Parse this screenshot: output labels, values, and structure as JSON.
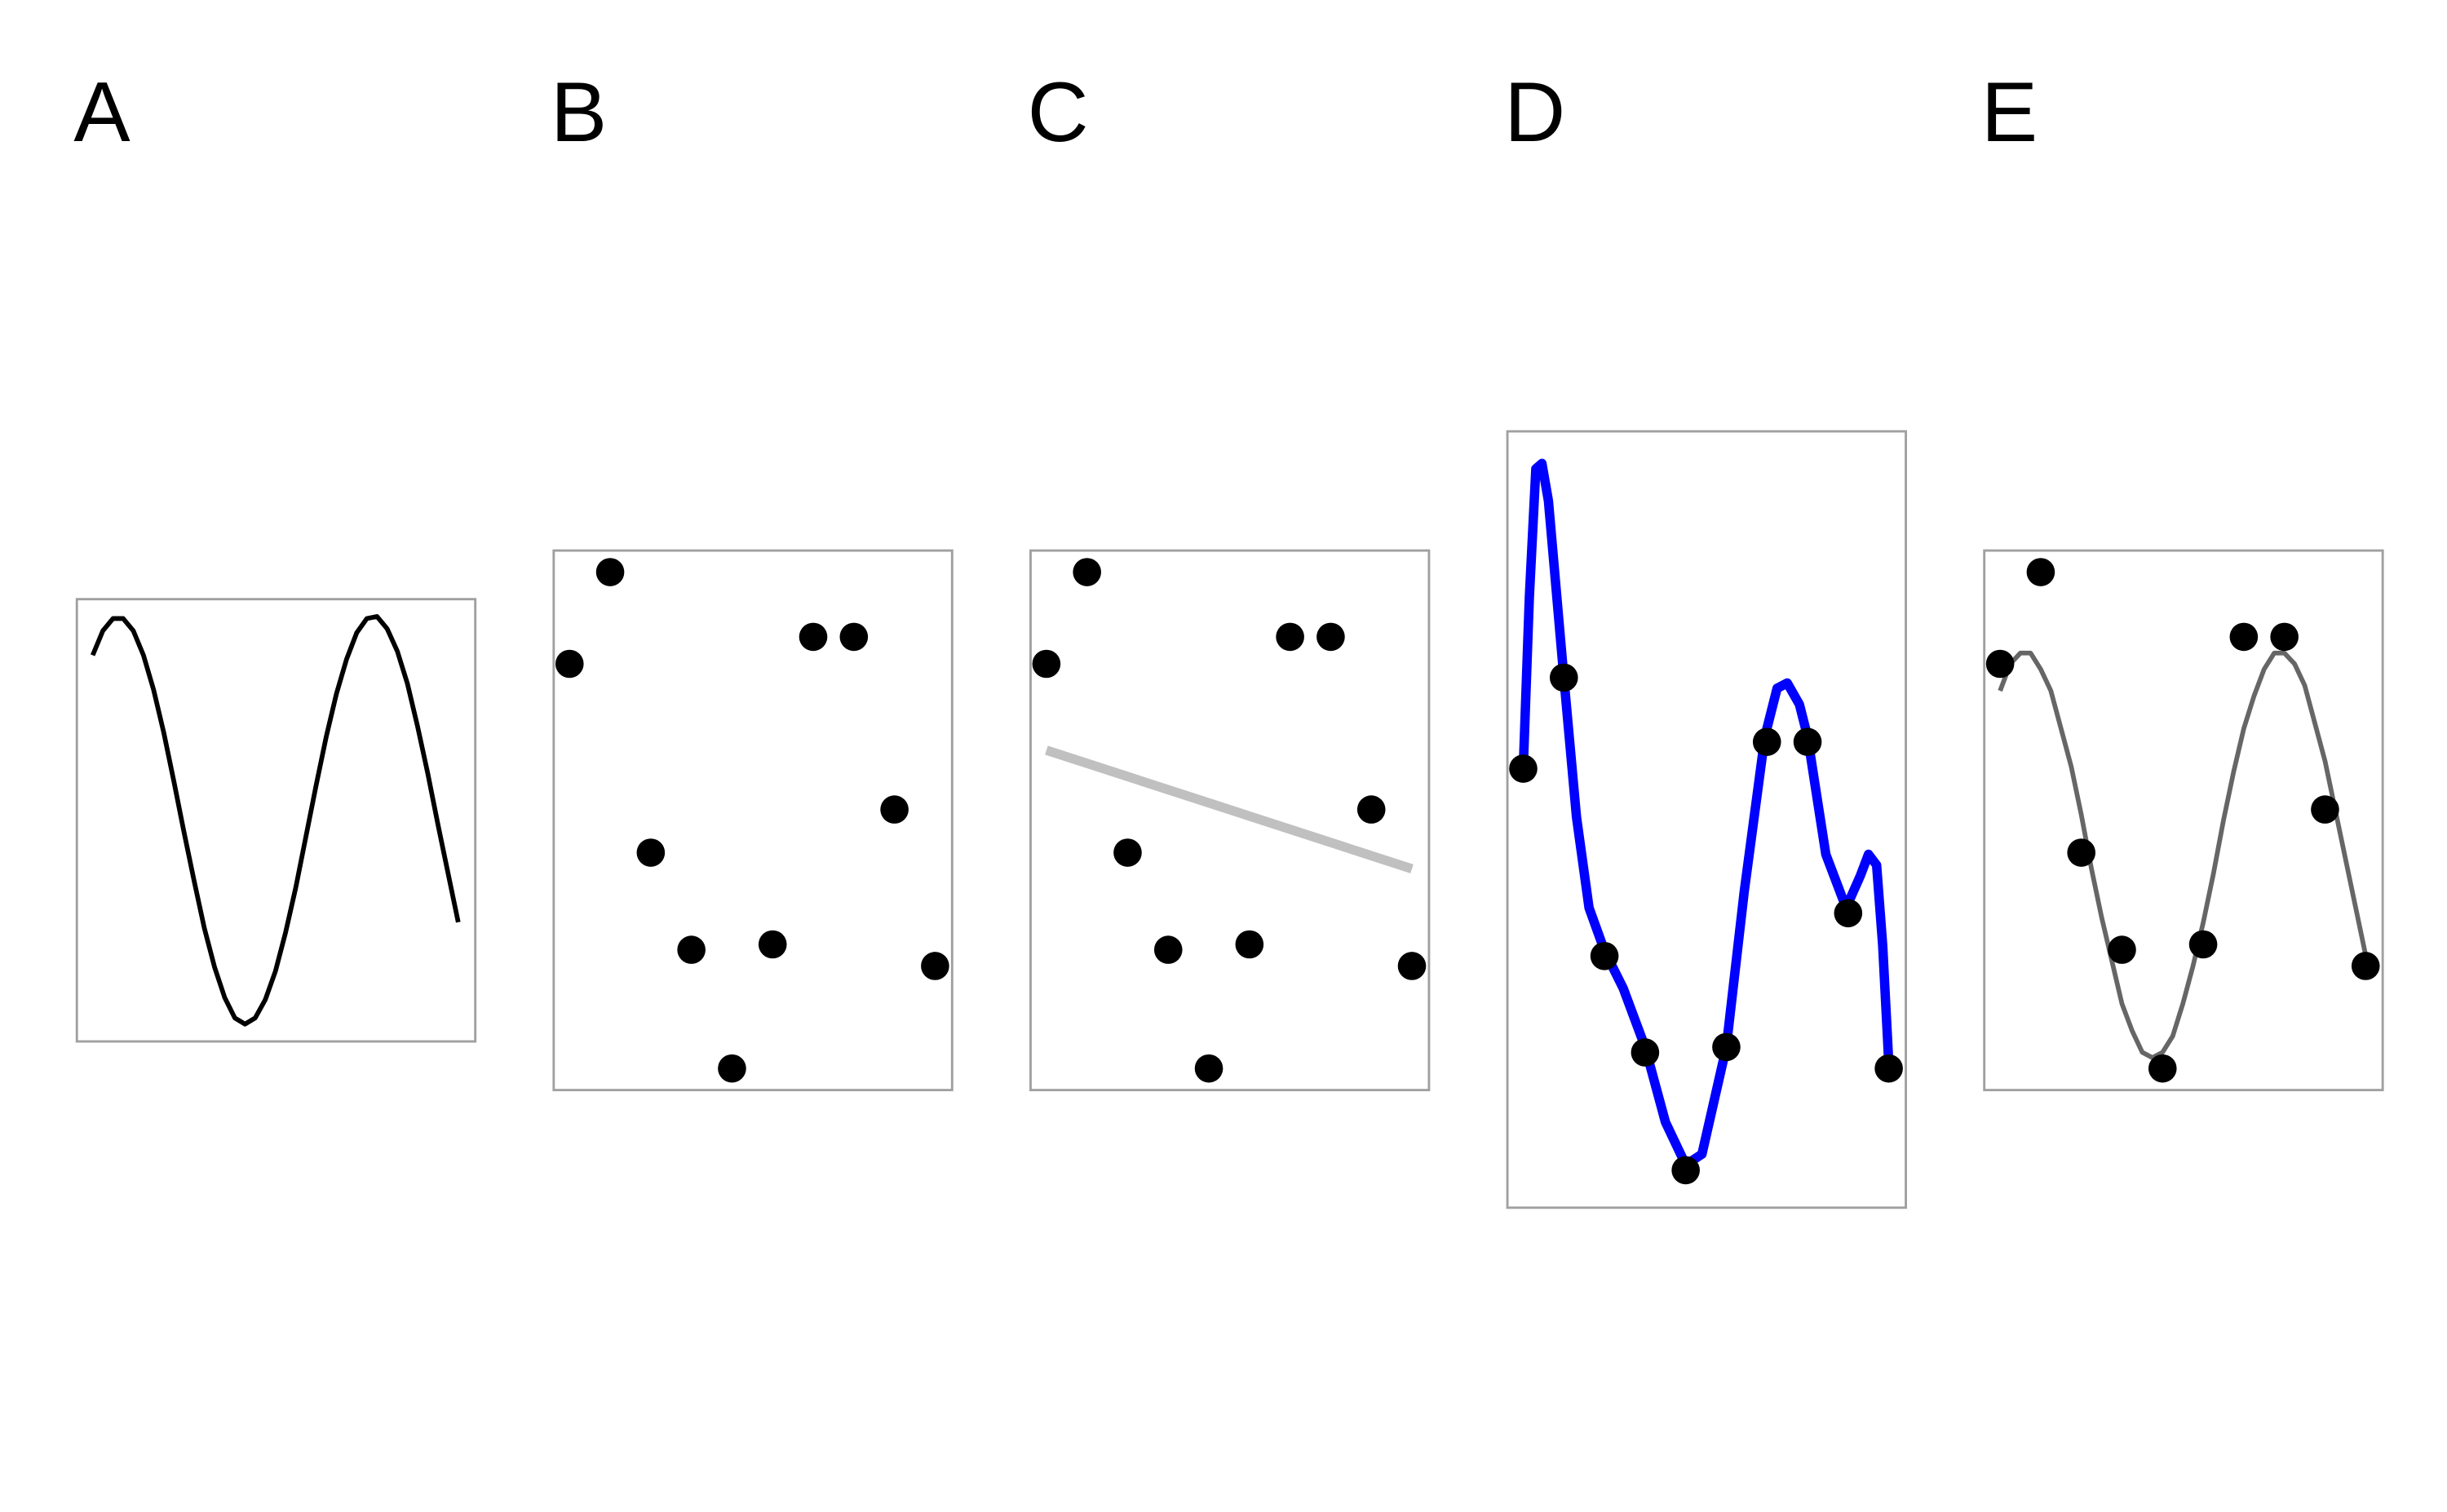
{
  "chart_data": [
    {
      "type": "line",
      "title": "A",
      "color": "#000000",
      "x": [
        0,
        0.25,
        0.5,
        0.75,
        1,
        1.25,
        1.5,
        1.75,
        2,
        2.25,
        2.5,
        2.75,
        3,
        3.25,
        3.5,
        3.75,
        4,
        4.25,
        4.5,
        4.75,
        5,
        5.25,
        5.5,
        5.75,
        6,
        6.25,
        6.5,
        6.75,
        7,
        7.25,
        7.5,
        7.75,
        8,
        8.25,
        8.5,
        8.75,
        9
      ],
      "values": [
        0.81,
        0.93,
        0.99,
        0.99,
        0.93,
        0.81,
        0.64,
        0.43,
        0.19,
        -0.06,
        -0.3,
        -0.53,
        -0.72,
        -0.87,
        -0.97,
        -1,
        -0.97,
        -0.88,
        -0.74,
        -0.55,
        -0.33,
        -0.08,
        0.17,
        0.41,
        0.62,
        0.79,
        0.92,
        0.99,
        1,
        0.94,
        0.83,
        0.67,
        0.46,
        0.23,
        -0.02,
        -0.26,
        -0.5
      ],
      "xlim": [
        -0.39,
        9.42
      ],
      "ylim": [
        -1.085,
        1.085
      ]
    },
    {
      "type": "scatter",
      "title": "B",
      "color": "#000000",
      "x": [
        0,
        1,
        2,
        3,
        4,
        5,
        6,
        7,
        8,
        9
      ],
      "values": [
        0.79,
        0.96,
        0.44,
        0.26,
        0.04,
        0.27,
        0.84,
        0.84,
        0.52,
        0.23
      ],
      "xlim": [
        -0.39,
        9.42
      ],
      "ylim": [
        0,
        1
      ]
    },
    {
      "type": "scatter",
      "title": "C",
      "color": "#000000",
      "x": [
        0,
        1,
        2,
        3,
        4,
        5,
        6,
        7,
        8,
        9
      ],
      "values": [
        0.79,
        0.96,
        0.44,
        0.26,
        0.04,
        0.27,
        0.84,
        0.84,
        0.52,
        0.23
      ],
      "fit": {
        "color": "#c0c0c0",
        "x": [
          0,
          9
        ],
        "values": [
          0.63,
          0.41
        ]
      },
      "xlim": [
        -0.39,
        9.42
      ],
      "ylim": [
        0,
        1
      ]
    },
    {
      "type": "scatter",
      "title": "D",
      "color": "#000000",
      "x": [
        0,
        1,
        2,
        3,
        4,
        5,
        6,
        7,
        8,
        9
      ],
      "values": [
        0.79,
        0.96,
        0.44,
        0.26,
        0.04,
        0.27,
        0.84,
        0.84,
        0.52,
        0.23
      ],
      "fit": {
        "color": "#0000ff",
        "x": [
          0,
          0.15,
          0.31,
          0.46,
          0.62,
          1,
          1.31,
          1.62,
          2,
          2.46,
          3,
          3.5,
          4,
          4.4,
          5,
          5.44,
          5.95,
          6.25,
          6.5,
          6.8,
          7,
          7.45,
          7.95,
          8.3,
          8.5,
          8.7,
          8.85,
          9
        ],
        "values": [
          0.79,
          1.11,
          1.35,
          1.36,
          1.29,
          0.96,
          0.7,
          0.53,
          0.45,
          0.38,
          0.27,
          0.13,
          0.05,
          0.07,
          0.27,
          0.56,
          0.85,
          0.94,
          0.95,
          0.91,
          0.85,
          0.63,
          0.53,
          0.59,
          0.63,
          0.61,
          0.46,
          0.24
        ]
      },
      "xlim": [
        -0.39,
        9.42
      ],
      "ylim": [
        -0.03,
        1.42
      ]
    },
    {
      "type": "scatter",
      "title": "E",
      "color": "#000000",
      "x": [
        0,
        1,
        2,
        3,
        4,
        5,
        6,
        7,
        8,
        9
      ],
      "values": [
        0.79,
        0.96,
        0.44,
        0.26,
        0.04,
        0.27,
        0.84,
        0.84,
        0.52,
        0.23
      ],
      "fit": {
        "color": "#666666",
        "x": [
          0,
          0.25,
          0.5,
          0.75,
          1,
          1.25,
          1.5,
          1.75,
          2,
          2.25,
          2.5,
          2.75,
          3,
          3.25,
          3.5,
          3.75,
          4,
          4.25,
          4.5,
          4.75,
          5,
          5.25,
          5.5,
          5.75,
          6,
          6.25,
          6.5,
          6.75,
          7,
          7.25,
          7.5,
          7.75,
          8,
          8.25,
          8.5,
          8.75,
          9
        ],
        "values": [
          0.74,
          0.79,
          0.81,
          0.81,
          0.78,
          0.74,
          0.67,
          0.6,
          0.51,
          0.41,
          0.32,
          0.24,
          0.16,
          0.11,
          0.07,
          0.06,
          0.07,
          0.1,
          0.16,
          0.23,
          0.31,
          0.4,
          0.5,
          0.59,
          0.67,
          0.73,
          0.78,
          0.81,
          0.81,
          0.79,
          0.75,
          0.68,
          0.61,
          0.52,
          0.43,
          0.34,
          0.25
        ]
      },
      "xlim": [
        -0.39,
        9.42
      ],
      "ylim": [
        0,
        1
      ]
    }
  ]
}
